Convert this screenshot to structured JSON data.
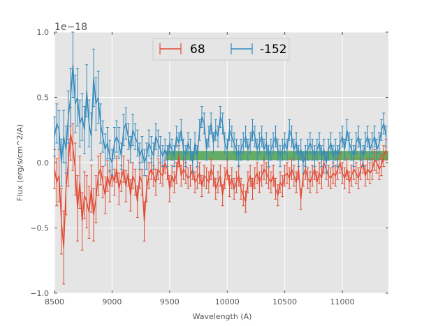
{
  "chart_data": {
    "type": "line",
    "title": "",
    "xlabel": "Wavelength (A)",
    "ylabel": "Flux (erg/s/cm^2/A)",
    "y_offset_label": "1e−18",
    "xlim": [
      8500,
      11400
    ],
    "ylim": [
      -1.0,
      1.0
    ],
    "x_ticks": [
      8500,
      9000,
      9500,
      10000,
      10500,
      11000
    ],
    "x_tick_labels": [
      "8500",
      "9000",
      "9500",
      "10000",
      "10500",
      "11000"
    ],
    "y_ticks": [
      -1.0,
      -0.5,
      0.0,
      0.5,
      1.0
    ],
    "y_tick_labels": [
      "−1.0",
      "−0.5",
      "0.0",
      "0.5",
      "1.0"
    ],
    "grid": true,
    "legend": {
      "placement": "top-center",
      "columns": 2
    },
    "band": {
      "x_start": 9470,
      "x_end": 11400,
      "y_low": 0.02,
      "y_high": 0.09,
      "color": "#3a9a3a"
    },
    "series": [
      {
        "name": "68",
        "color": "#e24a33",
        "x": [
          8500,
          8520,
          8540,
          8560,
          8580,
          8600,
          8620,
          8640,
          8660,
          8680,
          8700,
          8720,
          8740,
          8760,
          8780,
          8800,
          8820,
          8840,
          8860,
          8880,
          8900,
          8920,
          8940,
          8960,
          8980,
          9000,
          9020,
          9040,
          9060,
          9080,
          9100,
          9120,
          9140,
          9160,
          9180,
          9200,
          9220,
          9240,
          9260,
          9280,
          9300,
          9320,
          9340,
          9360,
          9380,
          9400,
          9420,
          9440,
          9460,
          9480,
          9500,
          9520,
          9540,
          9560,
          9580,
          9600,
          9620,
          9640,
          9660,
          9680,
          9700,
          9720,
          9740,
          9760,
          9780,
          9800,
          9820,
          9840,
          9860,
          9880,
          9900,
          9920,
          9940,
          9960,
          9980,
          10000,
          10020,
          10040,
          10060,
          10080,
          10100,
          10120,
          10140,
          10160,
          10180,
          10200,
          10220,
          10240,
          10260,
          10280,
          10300,
          10320,
          10340,
          10360,
          10380,
          10400,
          10420,
          10440,
          10460,
          10480,
          10500,
          10520,
          10540,
          10560,
          10580,
          10600,
          10620,
          10640,
          10660,
          10680,
          10700,
          10720,
          10740,
          10760,
          10780,
          10800,
          10820,
          10840,
          10860,
          10880,
          10900,
          10920,
          10940,
          10960,
          10980,
          11000,
          11020,
          11040,
          11060,
          11080,
          11100,
          11120,
          11140,
          11160,
          11180,
          11200,
          11220,
          11240,
          11260,
          11280,
          11300,
          11320,
          11340,
          11360,
          11380
        ],
        "y": [
          -0.05,
          -0.15,
          -0.1,
          -0.45,
          -0.65,
          -0.2,
          0.0,
          0.22,
          0.12,
          -0.05,
          -0.35,
          -0.15,
          -0.45,
          -0.25,
          -0.3,
          -0.38,
          -0.2,
          -0.4,
          -0.28,
          -0.1,
          -0.05,
          -0.15,
          -0.25,
          -0.1,
          -0.18,
          -0.08,
          -0.15,
          -0.05,
          -0.2,
          -0.12,
          -0.05,
          -0.18,
          -0.08,
          -0.25,
          -0.1,
          -0.15,
          -0.3,
          -0.1,
          -0.15,
          -0.45,
          -0.2,
          -0.1,
          -0.05,
          -0.1,
          -0.15,
          -0.05,
          -0.08,
          -0.1,
          0.0,
          -0.05,
          -0.2,
          -0.1,
          -0.15,
          -0.08,
          0.05,
          -0.1,
          -0.05,
          -0.08,
          -0.12,
          -0.1,
          -0.05,
          -0.15,
          -0.12,
          -0.08,
          -0.18,
          -0.1,
          -0.12,
          -0.15,
          -0.05,
          -0.1,
          -0.2,
          -0.15,
          -0.1,
          -0.25,
          -0.12,
          -0.05,
          -0.18,
          -0.12,
          -0.2,
          -0.15,
          -0.1,
          -0.2,
          -0.25,
          -0.3,
          -0.15,
          -0.1,
          -0.2,
          -0.12,
          -0.08,
          -0.15,
          -0.1,
          -0.05,
          -0.08,
          -0.12,
          -0.15,
          -0.1,
          -0.2,
          -0.25,
          -0.15,
          -0.18,
          -0.1,
          -0.08,
          -0.12,
          -0.05,
          -0.1,
          -0.15,
          -0.05,
          -0.28,
          -0.1,
          -0.05,
          -0.12,
          -0.15,
          -0.1,
          -0.05,
          -0.15,
          -0.08,
          -0.12,
          0.0,
          -0.05,
          -0.1,
          -0.12,
          -0.08,
          -0.1,
          -0.05,
          0.0,
          -0.08,
          -0.12,
          -0.05,
          -0.15,
          -0.1,
          -0.05,
          -0.08,
          -0.12,
          -0.05,
          0.0,
          -0.1,
          -0.05,
          -0.08,
          -0.05,
          0.02,
          0.0,
          -0.05,
          -0.02,
          0.05,
          0.1
        ],
        "err": [
          0.15,
          0.18,
          0.2,
          0.25,
          0.28,
          0.2,
          0.18,
          0.2,
          0.18,
          0.2,
          0.25,
          0.2,
          0.22,
          0.18,
          0.2,
          0.2,
          0.18,
          0.2,
          0.18,
          0.15,
          0.12,
          0.12,
          0.14,
          0.12,
          0.12,
          0.1,
          0.1,
          0.1,
          0.12,
          0.1,
          0.1,
          0.12,
          0.1,
          0.12,
          0.1,
          0.1,
          0.12,
          0.1,
          0.1,
          0.15,
          0.1,
          0.1,
          0.08,
          0.08,
          0.1,
          0.08,
          0.08,
          0.08,
          0.08,
          0.08,
          0.1,
          0.08,
          0.08,
          0.08,
          0.08,
          0.08,
          0.08,
          0.08,
          0.08,
          0.08,
          0.08,
          0.08,
          0.08,
          0.08,
          0.08,
          0.08,
          0.08,
          0.08,
          0.08,
          0.08,
          0.08,
          0.08,
          0.08,
          0.08,
          0.08,
          0.08,
          0.08,
          0.08,
          0.08,
          0.08,
          0.08,
          0.08,
          0.08,
          0.08,
          0.08,
          0.08,
          0.08,
          0.08,
          0.08,
          0.08,
          0.08,
          0.08,
          0.08,
          0.08,
          0.08,
          0.08,
          0.08,
          0.08,
          0.08,
          0.08,
          0.08,
          0.08,
          0.08,
          0.08,
          0.08,
          0.08,
          0.08,
          0.08,
          0.08,
          0.08,
          0.08,
          0.08,
          0.08,
          0.08,
          0.08,
          0.08,
          0.08,
          0.08,
          0.08,
          0.08,
          0.08,
          0.08,
          0.08,
          0.08,
          0.08,
          0.08,
          0.08,
          0.08,
          0.08,
          0.08,
          0.08,
          0.08,
          0.08,
          0.08,
          0.08,
          0.08,
          0.08,
          0.08,
          0.08,
          0.08,
          0.08,
          0.08,
          0.08,
          0.08,
          0.08
        ]
      },
      {
        "name": "-152",
        "color": "#348abd",
        "x": [
          8500,
          8520,
          8540,
          8560,
          8580,
          8600,
          8620,
          8640,
          8660,
          8680,
          8700,
          8720,
          8740,
          8760,
          8780,
          8800,
          8820,
          8840,
          8860,
          8880,
          8900,
          8920,
          8940,
          8960,
          8980,
          9000,
          9020,
          9040,
          9060,
          9080,
          9100,
          9120,
          9140,
          9160,
          9180,
          9200,
          9220,
          9240,
          9260,
          9280,
          9300,
          9320,
          9340,
          9360,
          9380,
          9400,
          9420,
          9440,
          9460,
          9480,
          9500,
          9520,
          9540,
          9560,
          9580,
          9600,
          9620,
          9640,
          9660,
          9680,
          9700,
          9720,
          9740,
          9760,
          9780,
          9800,
          9820,
          9840,
          9860,
          9880,
          9900,
          9920,
          9940,
          9960,
          9980,
          10000,
          10020,
          10040,
          10060,
          10080,
          10100,
          10120,
          10140,
          10160,
          10180,
          10200,
          10220,
          10240,
          10260,
          10280,
          10300,
          10320,
          10340,
          10360,
          10380,
          10400,
          10420,
          10440,
          10460,
          10480,
          10500,
          10520,
          10540,
          10560,
          10580,
          10600,
          10620,
          10640,
          10660,
          10680,
          10700,
          10720,
          10740,
          10760,
          10780,
          10800,
          10820,
          10840,
          10860,
          10880,
          10900,
          10920,
          10940,
          10960,
          10980,
          11000,
          11020,
          11040,
          11060,
          11080,
          11100,
          11120,
          11140,
          11160,
          11180,
          11200,
          11220,
          11240,
          11260,
          11280,
          11300,
          11320,
          11340,
          11360,
          11380
        ],
        "y": [
          0.2,
          0.3,
          0.25,
          0.0,
          0.2,
          0.1,
          0.35,
          0.5,
          0.75,
          0.45,
          0.5,
          0.3,
          0.35,
          0.25,
          0.55,
          0.3,
          0.2,
          0.65,
          0.45,
          0.5,
          0.3,
          0.2,
          0.1,
          0.15,
          0.05,
          0.0,
          0.15,
          0.2,
          0.15,
          0.05,
          0.25,
          0.3,
          0.2,
          0.1,
          0.25,
          0.2,
          0.15,
          0.05,
          0.1,
          0.0,
          0.05,
          0.15,
          0.1,
          0.05,
          0.2,
          0.15,
          0.1,
          0.05,
          0.1,
          0.05,
          0.15,
          0.1,
          0.05,
          0.2,
          0.15,
          0.25,
          0.1,
          0.05,
          0.15,
          0.1,
          0.0,
          0.15,
          0.05,
          0.25,
          0.35,
          0.3,
          0.1,
          0.2,
          0.3,
          0.15,
          0.25,
          0.2,
          0.35,
          0.3,
          0.15,
          0.1,
          0.25,
          0.2,
          0.15,
          0.1,
          0.05,
          0.1,
          0.15,
          0.2,
          0.1,
          0.15,
          0.25,
          0.2,
          0.1,
          0.15,
          0.2,
          0.1,
          0.15,
          0.05,
          0.1,
          0.15,
          0.2,
          0.1,
          0.05,
          0.1,
          0.15,
          0.1,
          0.25,
          0.2,
          0.1,
          0.15,
          0.05,
          0.1,
          0.0,
          0.05,
          0.1,
          0.15,
          0.1,
          0.05,
          0.1,
          0.15,
          0.05,
          0.1,
          0.0,
          0.1,
          0.15,
          0.05,
          0.1,
          0.05,
          0.15,
          0.2,
          0.1,
          0.25,
          0.15,
          0.1,
          0.05,
          0.15,
          0.2,
          0.1,
          0.05,
          0.15,
          0.2,
          0.1,
          0.15,
          0.2,
          0.1,
          0.15,
          0.25,
          0.3,
          0.2
        ],
        "err": [
          0.15,
          0.15,
          0.15,
          0.18,
          0.2,
          0.18,
          0.2,
          0.22,
          0.25,
          0.22,
          0.22,
          0.18,
          0.18,
          0.18,
          0.2,
          0.18,
          0.18,
          0.22,
          0.2,
          0.2,
          0.15,
          0.12,
          0.12,
          0.12,
          0.12,
          0.1,
          0.12,
          0.12,
          0.12,
          0.1,
          0.12,
          0.12,
          0.1,
          0.1,
          0.12,
          0.1,
          0.1,
          0.1,
          0.1,
          0.1,
          0.1,
          0.1,
          0.1,
          0.1,
          0.1,
          0.1,
          0.1,
          0.08,
          0.08,
          0.08,
          0.08,
          0.08,
          0.08,
          0.08,
          0.08,
          0.08,
          0.08,
          0.08,
          0.08,
          0.08,
          0.08,
          0.08,
          0.08,
          0.08,
          0.08,
          0.08,
          0.08,
          0.08,
          0.08,
          0.08,
          0.08,
          0.08,
          0.08,
          0.08,
          0.08,
          0.08,
          0.08,
          0.08,
          0.08,
          0.08,
          0.08,
          0.08,
          0.08,
          0.08,
          0.08,
          0.08,
          0.08,
          0.08,
          0.08,
          0.08,
          0.08,
          0.08,
          0.08,
          0.08,
          0.08,
          0.08,
          0.08,
          0.08,
          0.08,
          0.08,
          0.08,
          0.08,
          0.08,
          0.08,
          0.08,
          0.08,
          0.08,
          0.08,
          0.08,
          0.08,
          0.08,
          0.08,
          0.08,
          0.08,
          0.08,
          0.08,
          0.08,
          0.08,
          0.08,
          0.08,
          0.08,
          0.08,
          0.08,
          0.08,
          0.08,
          0.08,
          0.08,
          0.08,
          0.08,
          0.08,
          0.08,
          0.08,
          0.08,
          0.08,
          0.08,
          0.08,
          0.08,
          0.08,
          0.08,
          0.08,
          0.08,
          0.08,
          0.08,
          0.08,
          0.08
        ]
      }
    ]
  }
}
